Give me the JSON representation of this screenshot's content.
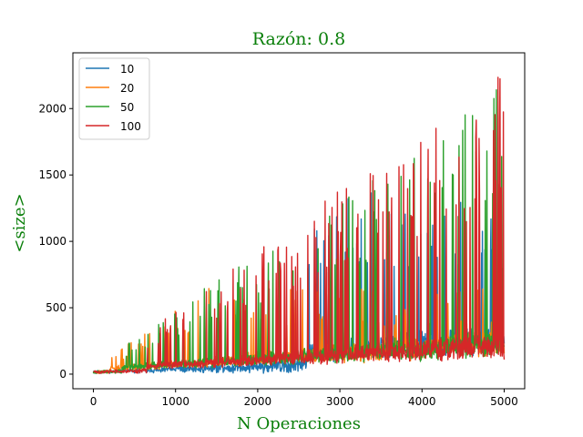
{
  "chart_data": {
    "type": "line",
    "title": "Razón: 0.8",
    "xlabel": "N Operaciones",
    "ylabel": "<size>",
    "xlim": [
      -250,
      5250
    ],
    "ylim": [
      -110,
      2420
    ],
    "xticks": [
      0,
      1000,
      2000,
      3000,
      4000,
      5000
    ],
    "yticks": [
      0,
      500,
      1000,
      1500,
      2000
    ],
    "legend_position": "upper-left",
    "series": [
      {
        "name": "10",
        "color": "#1f77b4",
        "n": 5000,
        "baseline_peak": 350,
        "spike_cap": 1420,
        "spike_start": 2600
      },
      {
        "name": "20",
        "color": "#ff7f0e",
        "n": 5000,
        "baseline_peak": 300,
        "spike_cap": 650,
        "spike_start": 200
      },
      {
        "name": "50",
        "color": "#2ca02c",
        "n": 5000,
        "baseline_peak": 280,
        "spike_cap": 2300,
        "spike_start": 350
      },
      {
        "name": "100",
        "color": "#d62728",
        "n": 5000,
        "baseline_peak": 250,
        "spike_cap": 2320,
        "spike_start": 650
      }
    ]
  }
}
